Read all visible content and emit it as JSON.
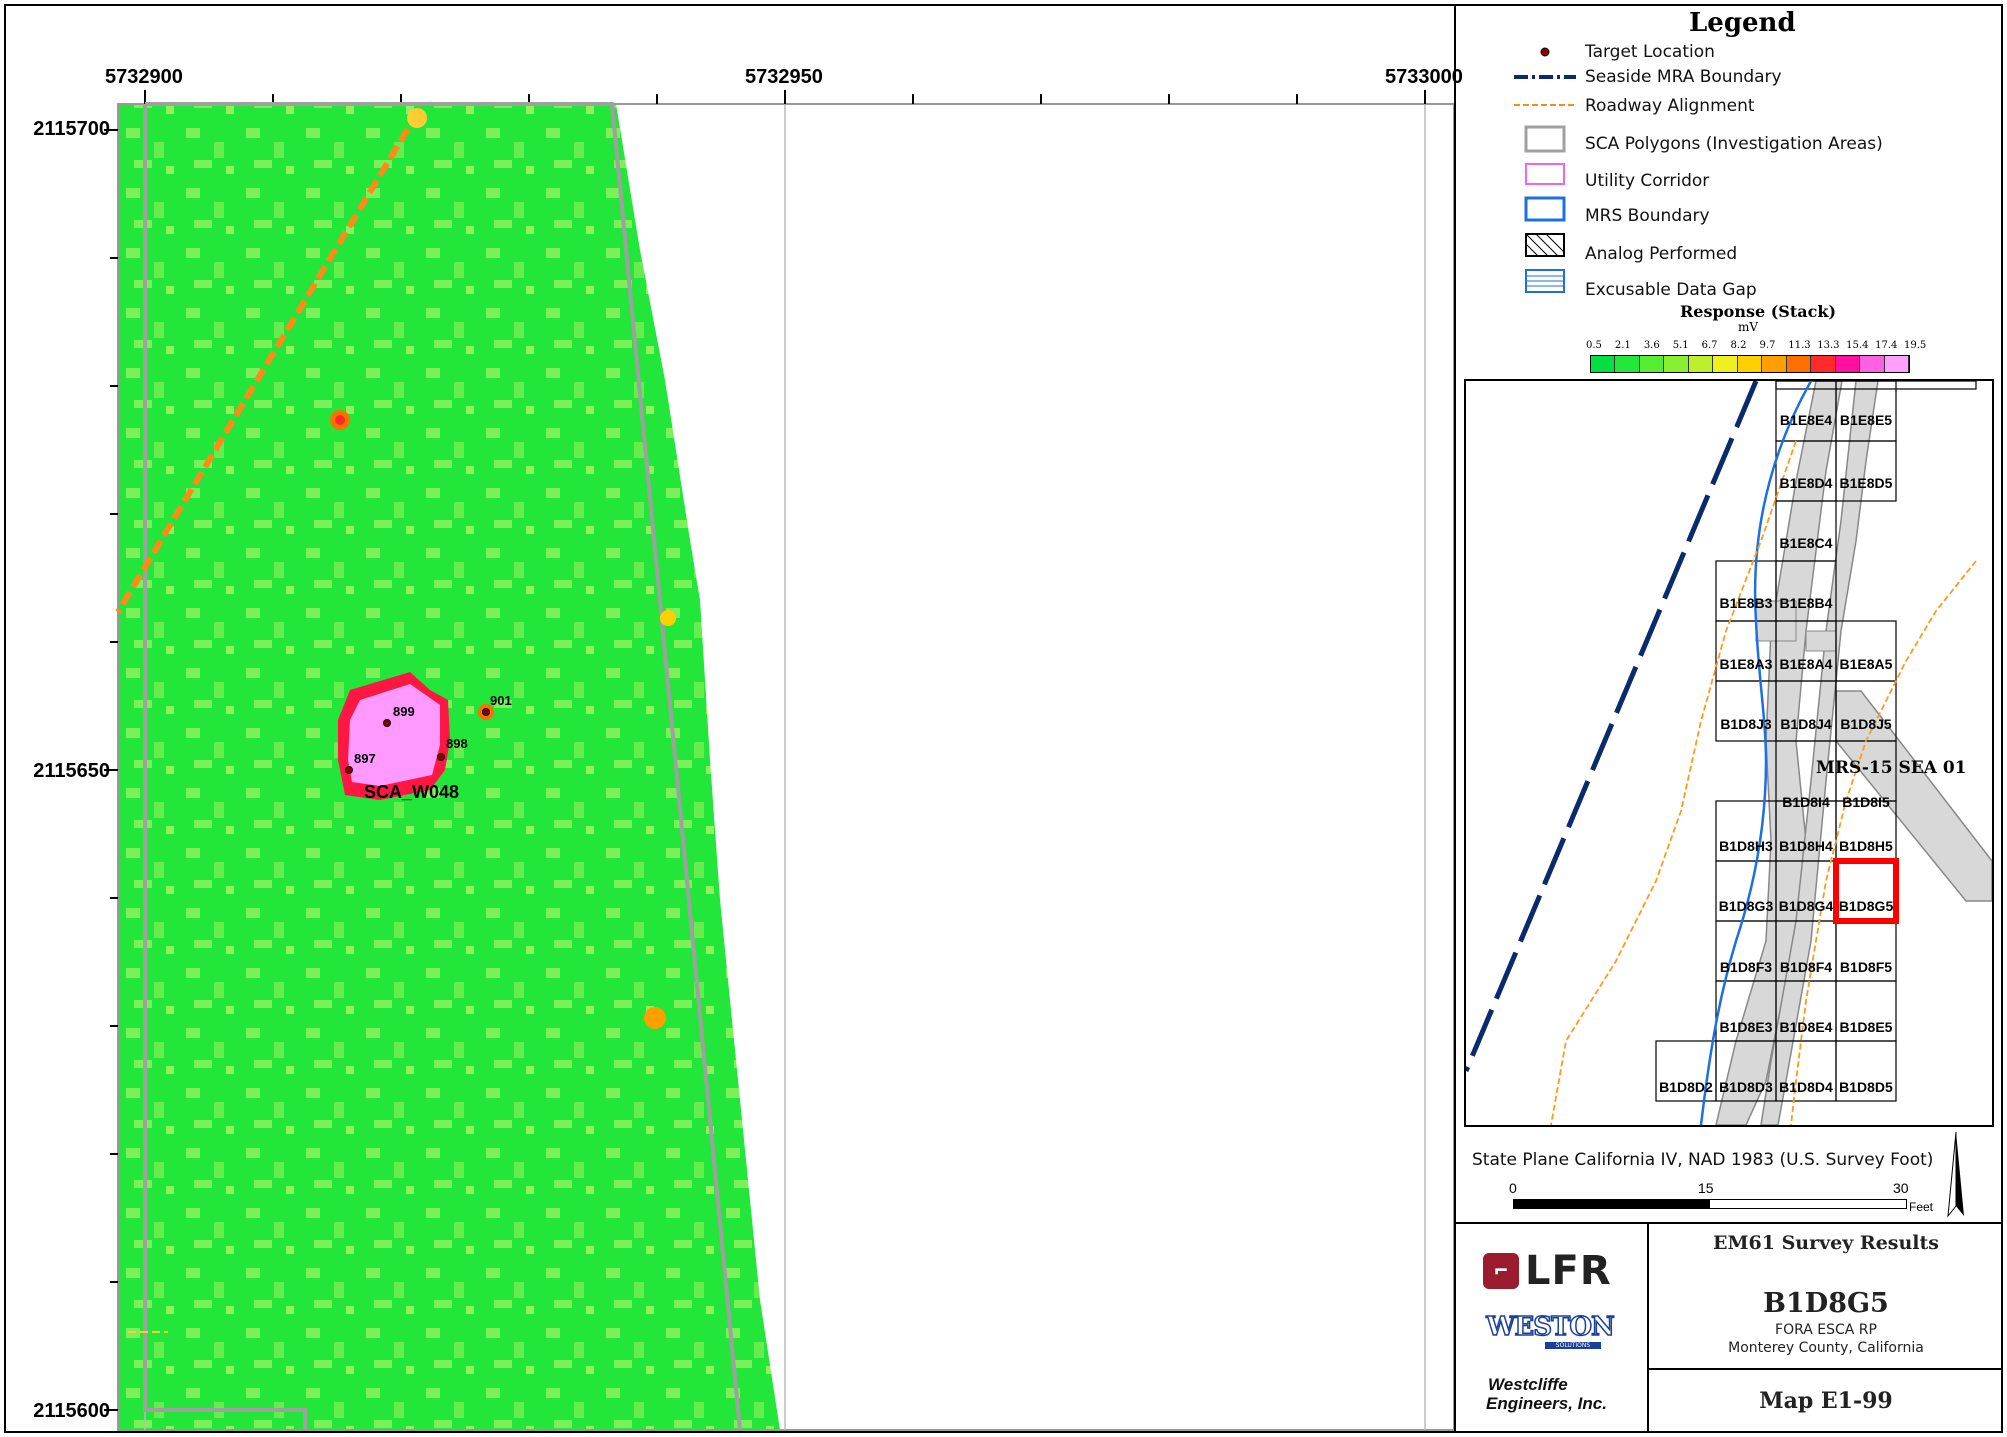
{
  "map": {
    "x_ticks": [
      {
        "label": "5732900",
        "value": 5732900
      },
      {
        "label": "5732950",
        "value": 5732950
      },
      {
        "label": "5733000",
        "value": 5733000
      }
    ],
    "y_ticks": [
      {
        "label": "2115700",
        "value": 2115700
      },
      {
        "label": "2115650",
        "value": 2115650
      },
      {
        "label": "2115600",
        "value": 2115600
      }
    ],
    "targets": [
      {
        "id": "899",
        "label": "899"
      },
      {
        "id": "901",
        "label": "901"
      },
      {
        "id": "898",
        "label": "898"
      },
      {
        "id": "897",
        "label": "897"
      }
    ],
    "sca_label": "SCA_W048"
  },
  "legend": {
    "title": "Legend",
    "items": [
      {
        "label": "Target Location",
        "icon": "target-dot-icon"
      },
      {
        "label": "Seaside MRA Boundary",
        "icon": "dash-dot-line-icon"
      },
      {
        "label": "Roadway Alignment",
        "icon": "orange-dashed-line-icon"
      },
      {
        "label": "SCA Polygons (Investigation Areas)",
        "icon": "gray-box-icon"
      },
      {
        "label": "Utility Corridor",
        "icon": "pink-box-icon"
      },
      {
        "label": "MRS Boundary",
        "icon": "blue-box-icon"
      },
      {
        "label": "Analog Performed",
        "icon": "hatched-box-icon"
      },
      {
        "label": "Excusable Data Gap",
        "icon": "blue-lined-box-icon"
      }
    ],
    "response_title": "Response (Stack)",
    "response_unit": "mV",
    "scale_values": [
      "0.5",
      "2.1",
      "3.6",
      "5.1",
      "6.7",
      "8.2",
      "9.7",
      "11.3",
      "13.3",
      "15.4",
      "17.4",
      "19.5"
    ],
    "scale_colors": [
      "#00e040",
      "#22e83a",
      "#55ee33",
      "#88f030",
      "#bbf02a",
      "#eef020",
      "#ffd000",
      "#ffa000",
      "#ff7000",
      "#ff2a2a",
      "#ff10a0",
      "#ff60e0",
      "#ffa0ff"
    ]
  },
  "index_map": {
    "cells": [
      "B1E8E4",
      "B1E8E5",
      "B1E8D4",
      "B1E8D5",
      "B1E8C4",
      "B1E8B3",
      "B1E8B4",
      "B1E8A3",
      "B1E8A4",
      "B1E8A5",
      "B1D8J3",
      "B1D8J4",
      "B1D8J5",
      "B1D8I4",
      "B1D8I5",
      "B1D8H3",
      "B1D8H4",
      "B1D8H5",
      "B1D8G3",
      "B1D8G4",
      "B1D8G5",
      "B1D8F3",
      "B1D8F4",
      "B1D8F5",
      "B1D8E3",
      "B1D8E4",
      "B1D8E5",
      "B1D8D2",
      "B1D8D3",
      "B1D8D4",
      "B1D8D5"
    ],
    "mrs_label": "MRS-15 SEA 01",
    "highlight": "B1D8G5"
  },
  "scale_bar": {
    "projection": "State Plane California IV, NAD 1983 (U.S. Survey Foot)",
    "labels": [
      "0",
      "15",
      "30"
    ],
    "unit": "Feet"
  },
  "title_block": {
    "lfr": "LFR",
    "weston": "WESTON",
    "weston_sub": "SOLUTIONS",
    "westcliffe_line1": "Westcliffe",
    "westcliffe_line2": "Engineers, Inc.",
    "survey_title": "EM61 Survey Results",
    "grid_name": "B1D8G5",
    "client": "FORA ESCA RP",
    "county": "Monterey County, California",
    "map_number": "Map E1-99"
  },
  "colors": {
    "survey_green": "#22e63a",
    "light_green": "#7cf05a",
    "anomaly_pink": "#ff99ff",
    "anomaly_red": "#ff1744",
    "roadway_orange": "#ff8a1a",
    "sca_gray": "#9e9e9e",
    "mra_blue": "#0a2a6e",
    "mrs_blue": "#1e6fe0",
    "highlight_red": "#ff0000"
  }
}
